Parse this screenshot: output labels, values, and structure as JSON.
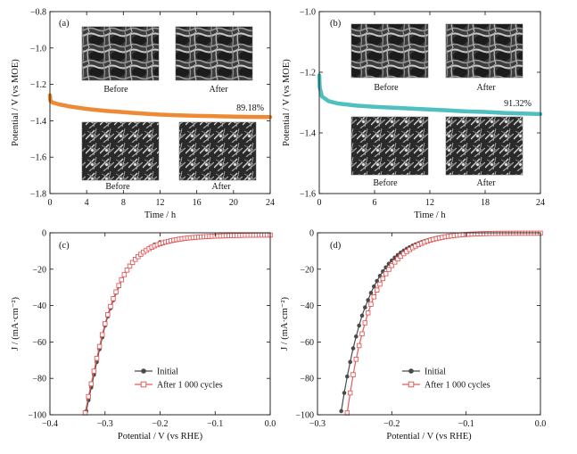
{
  "colors": {
    "panel_a_line": "#ee8a35",
    "panel_b_line": "#4fc0bf",
    "initial_series": "#4a4a4a",
    "after_series": "#e35a5a"
  },
  "chart_data": [
    {
      "panel": "(a)",
      "type": "line",
      "xlabel": "Time / h",
      "ylabel": "Potential / V (vs MOE)",
      "xlim": [
        0,
        24
      ],
      "ylim": [
        -1.8,
        -0.8
      ],
      "xticks": [
        0,
        4,
        8,
        12,
        16,
        20,
        24
      ],
      "xtick_labels": [
        "0",
        "4",
        "8",
        "12",
        "16",
        "20",
        "24"
      ],
      "yticks": [
        -1.8,
        -1.6,
        -1.4,
        -1.2,
        -1.0,
        -0.8
      ],
      "ytick_labels": [
        "−1.8",
        "−1.6",
        "−1.4",
        "−1.2",
        "−1.0",
        "−0.8"
      ],
      "x": [
        0,
        0.05,
        0.3,
        1,
        2,
        4,
        6,
        8,
        10,
        12,
        14,
        16,
        18,
        20,
        22,
        24
      ],
      "y": [
        -1.26,
        -1.29,
        -1.3,
        -1.31,
        -1.32,
        -1.335,
        -1.345,
        -1.353,
        -1.36,
        -1.366,
        -1.37,
        -1.373,
        -1.375,
        -1.377,
        -1.379,
        -1.38
      ],
      "annotation": "89.18%",
      "micrograph_captions": [
        "Before",
        "After",
        "Before",
        "After"
      ]
    },
    {
      "panel": "(b)",
      "type": "line",
      "xlabel": "Time / h",
      "ylabel": "Potential / V (vs MOE)",
      "xlim": [
        0,
        24
      ],
      "ylim": [
        -1.6,
        -1.0
      ],
      "xticks": [
        0,
        6,
        12,
        18,
        24
      ],
      "xtick_labels": [
        "0",
        "6",
        "12",
        "18",
        "24"
      ],
      "yticks": [
        -1.6,
        -1.4,
        -1.2,
        -1.0
      ],
      "ytick_labels": [
        "−1.6",
        "−1.4",
        "−1.2",
        "−1.0"
      ],
      "x": [
        0,
        0.05,
        0.3,
        1,
        2,
        4,
        6,
        8,
        10,
        12,
        14,
        16,
        18,
        20,
        22,
        24
      ],
      "y": [
        -1.21,
        -1.25,
        -1.28,
        -1.295,
        -1.303,
        -1.31,
        -1.314,
        -1.317,
        -1.32,
        -1.323,
        -1.326,
        -1.329,
        -1.331,
        -1.334,
        -1.336,
        -1.338
      ],
      "annotation": "91.32%",
      "micrograph_captions": [
        "Before",
        "After",
        "Before",
        "After"
      ]
    },
    {
      "panel": "(c)",
      "type": "line",
      "xlabel": "Potential / V (vs RHE)",
      "ylabel": "J / (mA·cm⁻²)",
      "xlim": [
        -0.4,
        0.0
      ],
      "ylim": [
        -100,
        0
      ],
      "xticks": [
        -0.4,
        -0.3,
        -0.2,
        -0.1,
        0.0
      ],
      "xtick_labels": [
        "−0.4",
        "−0.3",
        "−0.2",
        "−0.1",
        "0.0"
      ],
      "yticks": [
        -100,
        -80,
        -60,
        -40,
        -20,
        0
      ],
      "ytick_labels": [
        "−100",
        "−80",
        "−60",
        "−40",
        "−20",
        "0"
      ],
      "series": [
        {
          "name": "Initial",
          "x": [
            -0.334,
            -0.33,
            -0.325,
            -0.32,
            -0.315,
            -0.31,
            -0.305,
            -0.3,
            -0.295,
            -0.29,
            -0.285,
            -0.28,
            -0.275,
            -0.27,
            -0.265,
            -0.26,
            -0.25,
            -0.24,
            -0.23,
            -0.22,
            -0.21,
            -0.2
          ],
          "y": [
            -98,
            -92,
            -85,
            -78,
            -71,
            -64,
            -57.5,
            -51,
            -46,
            -41.5,
            -37,
            -33,
            -29.5,
            -26,
            -23,
            -20.5,
            -16.5,
            -13,
            -10.5,
            -8.3,
            -6.5,
            -5.2
          ]
        },
        {
          "name": "After 1 000 cycles",
          "x": [
            -0.336,
            -0.33,
            -0.325,
            -0.32,
            -0.315,
            -0.31,
            -0.305,
            -0.3,
            -0.295,
            -0.29,
            -0.285,
            -0.28,
            -0.275,
            -0.27,
            -0.265,
            -0.26,
            -0.255,
            -0.25,
            -0.245,
            -0.24,
            -0.235,
            -0.23,
            -0.225,
            -0.22,
            -0.215,
            -0.21,
            -0.205,
            -0.2,
            -0.195,
            -0.19,
            -0.185,
            -0.18,
            -0.175,
            -0.17,
            -0.165,
            -0.16,
            -0.155,
            -0.15,
            -0.145,
            -0.14,
            -0.135,
            -0.13,
            -0.125,
            -0.12,
            -0.115,
            -0.11,
            -0.105,
            -0.1,
            -0.095,
            -0.09,
            -0.085,
            -0.08,
            -0.075,
            -0.07,
            -0.065,
            -0.06,
            -0.055,
            -0.05,
            -0.045,
            -0.04,
            -0.035,
            -0.03,
            -0.025,
            -0.02,
            -0.015,
            -0.01,
            -0.005,
            0.0
          ],
          "y": [
            -99,
            -90,
            -83,
            -76,
            -69,
            -62.5,
            -56,
            -50,
            -45,
            -40.5,
            -36.2,
            -32.5,
            -29,
            -25.8,
            -23,
            -20.5,
            -18.3,
            -16.3,
            -14.6,
            -13.1,
            -11.8,
            -10.6,
            -9.6,
            -8.7,
            -7.9,
            -7.2,
            -6.6,
            -6,
            -5.5,
            -5.1,
            -4.7,
            -4.35,
            -4.05,
            -3.75,
            -3.5,
            -3.28,
            -3.08,
            -2.9,
            -2.74,
            -2.6,
            -2.47,
            -2.35,
            -2.25,
            -2.15,
            -2.06,
            -1.98,
            -1.91,
            -1.84,
            -1.78,
            -1.72,
            -1.67,
            -1.62,
            -1.58,
            -1.54,
            -1.5,
            -1.47,
            -1.44,
            -1.41,
            -1.38,
            -1.36,
            -1.34,
            -1.32,
            -1.3,
            -1.28,
            -1.27,
            -1.25,
            -1.24,
            -1.23
          ]
        }
      ],
      "legend_placement": "bottom-right"
    },
    {
      "panel": "(d)",
      "type": "line",
      "xlabel": "Potential / V (vs RHE)",
      "ylabel": "J / (mA·cm⁻²)",
      "xlim": [
        -0.3,
        0.0
      ],
      "ylim": [
        -100,
        0
      ],
      "xticks": [
        -0.3,
        -0.2,
        -0.1,
        0.0
      ],
      "xtick_labels": [
        "−0.3",
        "−0.2",
        "−0.1",
        "0.0"
      ],
      "yticks": [
        -100,
        -80,
        -60,
        -40,
        -20,
        0
      ],
      "ytick_labels": [
        "−100",
        "−80",
        "−60",
        "−40",
        "−20",
        "0"
      ],
      "series": [
        {
          "name": "Initial",
          "x": [
            -0.268,
            -0.264,
            -0.26,
            -0.256,
            -0.252,
            -0.248,
            -0.244,
            -0.24,
            -0.236,
            -0.232,
            -0.228,
            -0.224,
            -0.22,
            -0.216,
            -0.212,
            -0.208,
            -0.204,
            -0.2,
            -0.196,
            -0.192,
            -0.188,
            -0.184,
            -0.18,
            -0.176,
            -0.172,
            -0.168,
            -0.164,
            -0.16,
            -0.156,
            -0.152,
            -0.148,
            -0.144,
            -0.14,
            -0.136,
            -0.132,
            -0.128,
            -0.124,
            -0.12,
            -0.116,
            -0.112,
            -0.108,
            -0.104,
            -0.1,
            -0.096,
            -0.092,
            -0.088,
            -0.084,
            -0.08,
            -0.076,
            -0.072,
            -0.068,
            -0.064,
            -0.06
          ],
          "y": [
            -98,
            -88,
            -79,
            -71,
            -63.5,
            -57,
            -51,
            -45.5,
            -41,
            -37,
            -33,
            -29.5,
            -26.5,
            -23.7,
            -21.2,
            -19,
            -17,
            -15.2,
            -13.6,
            -12.2,
            -10.9,
            -9.8,
            -8.8,
            -7.9,
            -7.1,
            -6.4,
            -5.75,
            -5.15,
            -4.6,
            -4.1,
            -3.65,
            -3.25,
            -2.9,
            -2.58,
            -2.3,
            -2.05,
            -1.82,
            -1.62,
            -1.44,
            -1.28,
            -1.14,
            -1.01,
            -0.9,
            -0.8,
            -0.71,
            -0.63,
            -0.56,
            -0.5,
            -0.44,
            -0.39,
            -0.35,
            -0.31,
            -0.28
          ]
        },
        {
          "name": "After 1 000 cycles",
          "x": [
            -0.26,
            -0.256,
            -0.252,
            -0.248,
            -0.244,
            -0.24,
            -0.236,
            -0.232,
            -0.228,
            -0.224,
            -0.22,
            -0.216,
            -0.212,
            -0.208,
            -0.204,
            -0.2,
            -0.196,
            -0.192,
            -0.188,
            -0.184,
            -0.18,
            -0.176,
            -0.172,
            -0.168,
            -0.164,
            -0.16,
            -0.156,
            -0.152,
            -0.148,
            -0.144,
            -0.14,
            -0.136,
            -0.132,
            -0.128,
            -0.124,
            -0.12,
            -0.116,
            -0.112,
            -0.108,
            -0.104,
            -0.1,
            -0.096,
            -0.092,
            -0.088,
            -0.084,
            -0.08,
            -0.076,
            -0.072,
            -0.068,
            -0.064,
            -0.06,
            -0.056,
            -0.052,
            -0.048,
            -0.044,
            -0.04,
            -0.036,
            -0.032,
            -0.028,
            -0.024,
            -0.02,
            -0.016,
            -0.012,
            -0.008,
            -0.004,
            0.0
          ],
          "y": [
            -99,
            -88,
            -78,
            -69.5,
            -62,
            -55.5,
            -49.5,
            -44,
            -39.3,
            -35.2,
            -31.5,
            -28.2,
            -25.2,
            -22.5,
            -20.1,
            -18,
            -16.1,
            -14.4,
            -12.9,
            -11.5,
            -10.3,
            -9.2,
            -8.2,
            -7.3,
            -6.5,
            -5.8,
            -5.15,
            -4.58,
            -4.06,
            -3.6,
            -3.19,
            -2.83,
            -2.5,
            -2.21,
            -1.95,
            -1.72,
            -1.52,
            -1.34,
            -1.18,
            -1.04,
            -0.92,
            -0.81,
            -0.72,
            -0.64,
            -0.57,
            -0.51,
            -0.46,
            -0.42,
            -0.38,
            -0.35,
            -0.32,
            -0.3,
            -0.28,
            -0.27,
            -0.26,
            -0.25,
            -0.24,
            -0.24,
            -0.23,
            -0.23,
            -0.23,
            -0.22,
            -0.22,
            -0.22,
            -0.22,
            -0.22
          ]
        }
      ],
      "legend_placement": "bottom-right"
    }
  ]
}
